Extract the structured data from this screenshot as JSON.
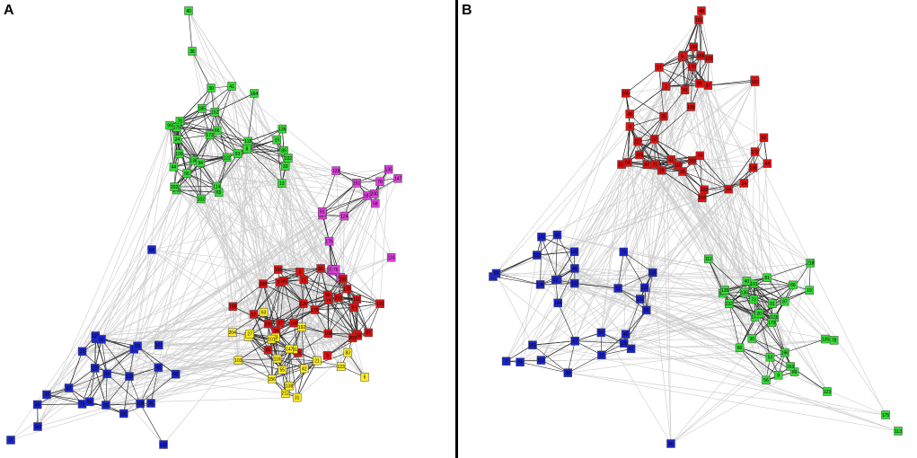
{
  "figure": {
    "panels": [
      {
        "letter": "A"
      },
      {
        "letter": "B"
      }
    ]
  },
  "colors": {
    "green": "#33dd33",
    "magenta": "#e040e0",
    "red": "#dd1111",
    "yellow": "#ffee22",
    "blue": "#1a24cc",
    "edge_strong": "#222222",
    "edge_weak": "#cccccc",
    "divider": "#000000"
  },
  "panel_a": {
    "groups": [
      {
        "color_key": "green",
        "labels": [
          "40",
          "38",
          "30",
          "41",
          "164",
          "53",
          "24",
          "118",
          "109",
          "70",
          "33",
          "8",
          "152",
          "148",
          "202",
          "89",
          "56",
          "65",
          "66",
          "13",
          "122",
          "138",
          "99",
          "222",
          "114",
          "19",
          "185",
          "173",
          "136",
          "44",
          "102",
          "175",
          "94"
        ]
      },
      {
        "color_key": "magenta",
        "labels": [
          "176",
          "134",
          "145",
          "187",
          "161",
          "65",
          "200",
          "116",
          "147",
          "124",
          "123",
          "78",
          "135",
          "91",
          "128",
          "76",
          "58"
        ]
      },
      {
        "color_key": "red",
        "labels": [
          "208",
          "35",
          "74",
          "29",
          "17",
          "168",
          "170",
          "60",
          "87",
          "150",
          "3",
          "37",
          "155",
          "179",
          "226",
          "140",
          "199",
          "44",
          "86",
          "210",
          "1",
          "190",
          "110",
          "92",
          "57",
          "14",
          "111",
          "166",
          "160",
          "98",
          "209"
        ]
      },
      {
        "color_key": "yellow",
        "labels": [
          "204",
          "103",
          "51",
          "23",
          "55",
          "131",
          "5",
          "31",
          "123",
          "147",
          "42",
          "192",
          "83",
          "27",
          "63",
          "21",
          "101",
          "116",
          "212",
          "138",
          "156"
        ]
      },
      {
        "color_key": "blue",
        "labels": [
          "7",
          "64",
          "132",
          "142",
          "71",
          "95",
          "130",
          "59",
          "161",
          "43",
          "67",
          "182",
          "120",
          "79",
          "46",
          "108",
          "90",
          "82",
          "33",
          "26",
          "19",
          "52",
          "45",
          "69",
          "129"
        ]
      }
    ]
  },
  "panel_b": {
    "groups": [
      {
        "color_key": "red",
        "labels": [
          "48",
          "151",
          "35",
          "17",
          "120",
          "32",
          "94",
          "102",
          "57",
          "138",
          "41",
          "183",
          "213",
          "3",
          "14",
          "26",
          "71",
          "86",
          "1",
          "190",
          "64",
          "48",
          "199",
          "37",
          "92",
          "60",
          "227",
          "155",
          "210",
          "116",
          "201",
          "163",
          "179",
          "168",
          "9",
          "170",
          "150",
          "44",
          "74",
          "29",
          "87"
        ]
      },
      {
        "color_key": "blue",
        "labels": [
          "5",
          "66",
          "84",
          "137",
          "146",
          "139",
          "144",
          "45",
          "69",
          "129",
          "59",
          "133",
          "95",
          "46",
          "82",
          "19",
          "90",
          "107",
          "67",
          "120",
          "88",
          "79",
          "26",
          "52",
          "43",
          "161",
          "141",
          "182",
          "108",
          "7"
        ]
      },
      {
        "color_key": "green",
        "labels": [
          "175",
          "113",
          "123",
          "218",
          "135",
          "89",
          "136",
          "66",
          "191",
          "174",
          "78",
          "53",
          "222",
          "19",
          "87",
          "104",
          "112",
          "196",
          "73",
          "91",
          "9",
          "135",
          "176",
          "179",
          "66",
          "20",
          "30",
          "163",
          "40",
          "81",
          "56"
        ]
      }
    ]
  }
}
